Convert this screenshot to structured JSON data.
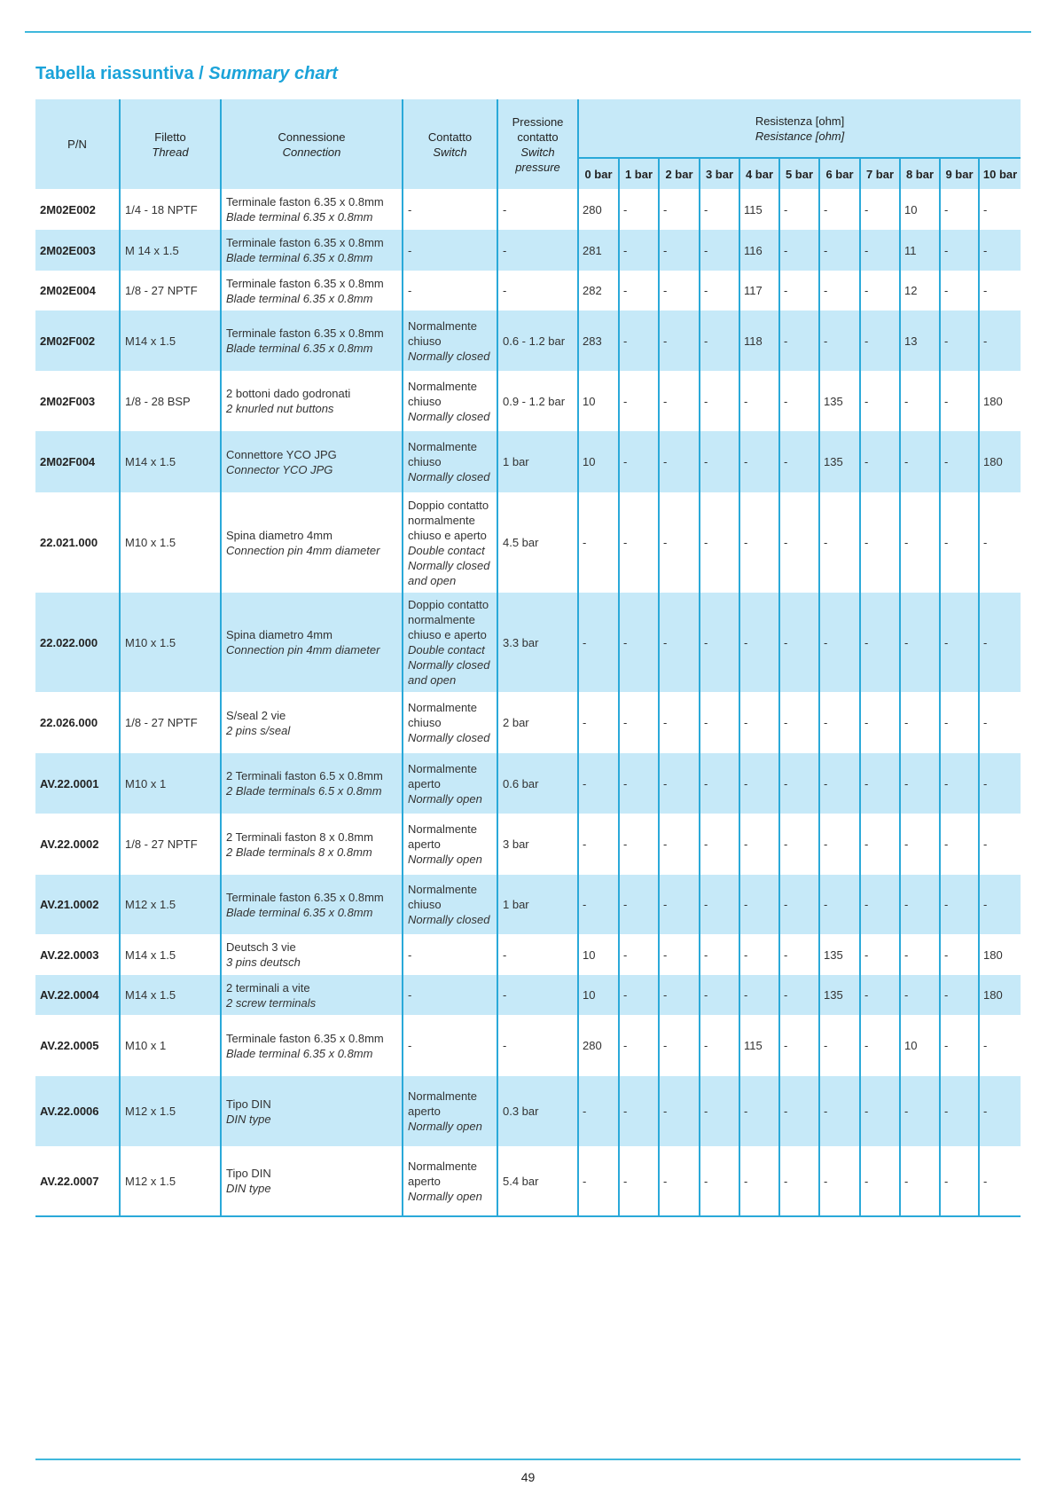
{
  "title": {
    "it": "Tabella riassuntiva /",
    "en": "Summary chart"
  },
  "headers": {
    "pn": "P/N",
    "thread_it": "Filetto",
    "thread_en": "Thread",
    "conn_it": "Connessione",
    "conn_en": "Connection",
    "switch_it": "Contatto",
    "switch_en": "Switch",
    "press_it": "Pressione contatto",
    "press_en": "Switch pressure",
    "res_it": "Resistenza [ohm]",
    "res_en": "Resistance [ohm]",
    "bars": [
      "0 bar",
      "1 bar",
      "2 bar",
      "3 bar",
      "4 bar",
      "5 bar",
      "6 bar",
      "7 bar",
      "8 bar",
      "9 bar",
      "10 bar"
    ]
  },
  "rows": [
    {
      "pn": "2M02E002",
      "thread": "1/4 - 18 NPTF",
      "conn_it": "Terminale faston 6.35 x 0.8mm",
      "conn_en": "Blade terminal 6.35 x 0.8mm",
      "switch_it": "-",
      "switch_en": "",
      "press": "-",
      "res": [
        "280",
        "-",
        "-",
        "-",
        "115",
        "-",
        "-",
        "-",
        "10",
        "-",
        "-"
      ]
    },
    {
      "pn": "2M02E003",
      "thread": "M 14 x 1.5",
      "conn_it": "Terminale faston 6.35 x 0.8mm",
      "conn_en": "Blade terminal 6.35 x 0.8mm",
      "switch_it": "-",
      "switch_en": "",
      "press": "-",
      "res": [
        "281",
        "-",
        "-",
        "-",
        "116",
        "-",
        "-",
        "-",
        "11",
        "-",
        "-"
      ]
    },
    {
      "pn": "2M02E004",
      "thread": "1/8 - 27 NPTF",
      "conn_it": "Terminale faston 6.35 x 0.8mm",
      "conn_en": "Blade terminal 6.35 x 0.8mm",
      "switch_it": "-",
      "switch_en": "",
      "press": "-",
      "res": [
        "282",
        "-",
        "-",
        "-",
        "117",
        "-",
        "-",
        "-",
        "12",
        "-",
        "-"
      ]
    },
    {
      "pn": "2M02F002",
      "thread": "M14 x 1.5",
      "conn_it": "Terminale faston 6.35 x 0.8mm",
      "conn_en": "Blade terminal 6.35 x 0.8mm",
      "switch_it": "Normalmente chiuso",
      "switch_en": "Normally closed",
      "press": "0.6 - 1.2 bar",
      "res": [
        "283",
        "-",
        "-",
        "-",
        "118",
        "-",
        "-",
        "-",
        "13",
        "-",
        "-"
      ]
    },
    {
      "pn": "2M02F003",
      "thread": "1/8 - 28 BSP",
      "conn_it": "2 bottoni dado godronati",
      "conn_en": "2 knurled nut buttons",
      "switch_it": "Normalmente chiuso",
      "switch_en": "Normally closed",
      "press": "0.9 - 1.2 bar",
      "res": [
        "10",
        "-",
        "-",
        "-",
        "-",
        "-",
        "135",
        "-",
        "-",
        "-",
        "180"
      ]
    },
    {
      "pn": "2M02F004",
      "thread": "M14 x 1.5",
      "conn_it": "Connettore YCO JPG",
      "conn_en": "Connector YCO JPG",
      "switch_it": "Normalmente chiuso",
      "switch_en": "Normally closed",
      "press": "1 bar",
      "res": [
        "10",
        "-",
        "-",
        "-",
        "-",
        "-",
        "135",
        "-",
        "-",
        "-",
        "180"
      ]
    },
    {
      "pn": "22.021.000",
      "thread": "M10 x 1.5",
      "conn_it": "Spina diametro 4mm",
      "conn_en": "Connection pin 4mm diameter",
      "switch_it": "Doppio contatto normalmente chiuso e aperto",
      "switch_en": "Double contact Normally closed and open",
      "press": "4.5 bar",
      "res": [
        "-",
        "-",
        "-",
        "-",
        "-",
        "-",
        "-",
        "-",
        "-",
        "-",
        "-"
      ]
    },
    {
      "pn": "22.022.000",
      "thread": "M10 x 1.5",
      "conn_it": "Spina diametro 4mm",
      "conn_en": "Connection pin 4mm diameter",
      "switch_it": "Doppio contatto normalmente chiuso e aperto",
      "switch_en": "Double contact Normally closed and open",
      "press": "3.3 bar",
      "res": [
        "-",
        "-",
        "-",
        "-",
        "-",
        "-",
        "-",
        "-",
        "-",
        "-",
        "-"
      ]
    },
    {
      "pn": "22.026.000",
      "thread": "1/8 - 27 NPTF",
      "conn_it": "S/seal 2 vie",
      "conn_en": "2 pins s/seal",
      "switch_it": "Normalmente chiuso",
      "switch_en": "Normally closed",
      "press": "2 bar",
      "res": [
        "-",
        "-",
        "-",
        "-",
        "-",
        "-",
        "-",
        "-",
        "-",
        "-",
        "-"
      ]
    },
    {
      "pn": "AV.22.0001",
      "thread": "M10 x 1",
      "conn_it": "2 Terminali faston 6.5 x 0.8mm",
      "conn_en": "2 Blade terminals 6.5 x 0.8mm",
      "switch_it": "Normalmente aperto",
      "switch_en": "Normally open",
      "press": "0.6 bar",
      "res": [
        "-",
        "-",
        "-",
        "-",
        "-",
        "-",
        "-",
        "-",
        "-",
        "-",
        "-"
      ]
    },
    {
      "pn": "AV.22.0002",
      "thread": "1/8 - 27 NPTF",
      "conn_it": "2 Terminali faston 8 x 0.8mm",
      "conn_en": "2 Blade terminals 8 x 0.8mm",
      "switch_it": "Normalmente aperto",
      "switch_en": "Normally open",
      "press": "3 bar",
      "res": [
        "-",
        "-",
        "-",
        "-",
        "-",
        "-",
        "-",
        "-",
        "-",
        "-",
        "-"
      ]
    },
    {
      "pn": "AV.21.0002",
      "thread": "M12 x 1.5",
      "conn_it": "Terminale faston 6.35 x 0.8mm",
      "conn_en": "Blade terminal 6.35 x 0.8mm",
      "switch_it": "Normalmente chiuso",
      "switch_en": "Normally closed",
      "press": "1 bar",
      "res": [
        "-",
        "-",
        "-",
        "-",
        "-",
        "-",
        "-",
        "-",
        "-",
        "-",
        "-"
      ]
    },
    {
      "pn": "AV.22.0003",
      "thread": "M14 x 1.5",
      "conn_it": "Deutsch 3 vie",
      "conn_en": "3 pins deutsch",
      "switch_it": "-",
      "switch_en": "",
      "press": "-",
      "res": [
        "10",
        "-",
        "-",
        "-",
        "-",
        "-",
        "135",
        "-",
        "-",
        "-",
        "180"
      ]
    },
    {
      "pn": "AV.22.0004",
      "thread": "M14 x 1.5",
      "conn_it": "2 terminali a vite",
      "conn_en": "2 screw terminals",
      "switch_it": "-",
      "switch_en": "",
      "press": "-",
      "res": [
        "10",
        "-",
        "-",
        "-",
        "-",
        "-",
        "135",
        "-",
        "-",
        "-",
        "180"
      ]
    },
    {
      "pn": "AV.22.0005",
      "thread": "M10 x 1",
      "conn_it": "Terminale faston 6.35 x 0.8mm",
      "conn_en": "Blade terminal 6.35 x 0.8mm",
      "switch_it": "-",
      "switch_en": "",
      "press": "-",
      "res": [
        "280",
        "-",
        "-",
        "-",
        "115",
        "-",
        "-",
        "-",
        "10",
        "-",
        "-"
      ]
    },
    {
      "pn": "AV.22.0006",
      "thread": "M12 x 1.5",
      "conn_it": "Tipo DIN",
      "conn_en": "DIN type",
      "switch_it": "Normalmente aperto",
      "switch_en": "Normally open",
      "press": "0.3 bar",
      "res": [
        "-",
        "-",
        "-",
        "-",
        "-",
        "-",
        "-",
        "-",
        "-",
        "-",
        "-"
      ]
    },
    {
      "pn": "AV.22.0007",
      "thread": "M12 x 1.5",
      "conn_it": "Tipo DIN",
      "conn_en": "DIN type",
      "switch_it": "Normalmente aperto",
      "switch_en": "Normally open",
      "press": "5.4 bar",
      "res": [
        "-",
        "-",
        "-",
        "-",
        "-",
        "-",
        "-",
        "-",
        "-",
        "-",
        "-"
      ]
    }
  ],
  "page_number": "49",
  "colors": {
    "accent": "#1ba3d9",
    "stripe": "#c6e9f8",
    "rule": "#3fb8dc"
  }
}
